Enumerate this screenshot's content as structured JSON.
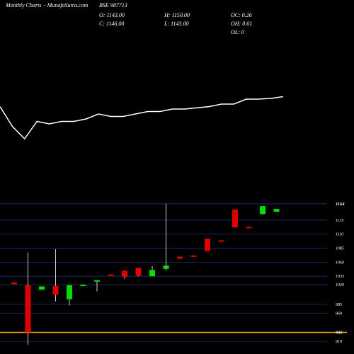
{
  "header": {
    "brand": "Monthly Charts",
    "site": "- MunafaSutra.com",
    "symbol": "BSE 987713",
    "open_close": [
      "O: 1143.00",
      "C: 1146.00"
    ],
    "high_low": [
      "H: 1150.00",
      "L: 1143.00"
    ],
    "oc_oh_ol": [
      "OC: 0.26",
      "OH: 0.61",
      "OL: 0"
    ]
  },
  "colors": {
    "background": "#000000",
    "up": "#00e000",
    "down": "#e00000",
    "grid": "#1c2e6e",
    "highlight_line": "#ff9900",
    "line": "#ffffff"
  },
  "chart_data": {
    "type": "candlestick",
    "y_axis": {
      "range": [
        899,
        1174
      ],
      "ticks": [
        919,
        935,
        969,
        985,
        1020,
        1035,
        1060,
        1085,
        1110,
        1135,
        1164
      ],
      "tick_labels": [
        "919",
        "935",
        "969",
        "985",
        "1020",
        "1035",
        "1060",
        "1085",
        "1110",
        "1135",
        "1164"
      ],
      "highlighted_ticks": [
        1164,
        935
      ],
      "grid": true
    },
    "current_price_line": 935,
    "candles": [
      {
        "o": 1024,
        "h": 1024,
        "l": 1021,
        "c": 1021
      },
      {
        "o": 1019,
        "h": 1077,
        "l": 913,
        "c": 935
      },
      {
        "o": 1011,
        "h": 1017,
        "l": 1011,
        "c": 1017
      },
      {
        "o": 1018,
        "h": 1083,
        "l": 990,
        "c": 1002
      },
      {
        "o": 994,
        "h": 1019,
        "l": 983,
        "c": 1019
      },
      {
        "o": 1020,
        "h": 1020,
        "l": 1019,
        "c": 1020
      },
      {
        "o": 1028,
        "h": 1028,
        "l": 1008,
        "c": 1028
      },
      {
        "o": 1038,
        "h": 1038,
        "l": 1037,
        "c": 1037
      },
      {
        "o": 1045,
        "h": 1045,
        "l": 1030,
        "c": 1034
      },
      {
        "o": 1050,
        "h": 1050,
        "l": 1035,
        "c": 1036
      },
      {
        "o": 1035,
        "h": 1053,
        "l": 1035,
        "c": 1046
      },
      {
        "o": 1048,
        "h": 1164,
        "l": 1045,
        "c": 1054
      },
      {
        "o": 1070,
        "h": 1070,
        "l": 1066,
        "c": 1067
      },
      {
        "o": 1072,
        "h": 1072,
        "l": 1071,
        "c": 1071
      },
      {
        "o": 1102,
        "h": 1102,
        "l": 1080,
        "c": 1080
      },
      {
        "o": 1099,
        "h": 1099,
        "l": 1097,
        "c": 1097
      },
      {
        "o": 1154,
        "h": 1154,
        "l": 1122,
        "c": 1122
      },
      {
        "o": 1123,
        "h": 1123,
        "l": 1122,
        "c": 1122
      },
      {
        "o": 1146,
        "h": 1160,
        "l": 1145,
        "c": 1160
      },
      {
        "o": 1150,
        "h": 1155,
        "l": 1150,
        "c": 1155
      }
    ],
    "overlay_line": {
      "values": [
        0.43,
        0.51,
        0.56,
        0.49,
        0.5,
        0.49,
        0.49,
        0.48,
        0.46,
        0.47,
        0.47,
        0.46,
        0.45,
        0.45,
        0.44,
        0.44,
        0.435,
        0.43,
        0.42,
        0.42,
        0.4,
        0.4,
        0.397,
        0.39
      ],
      "range": [
        0,
        1
      ]
    }
  }
}
